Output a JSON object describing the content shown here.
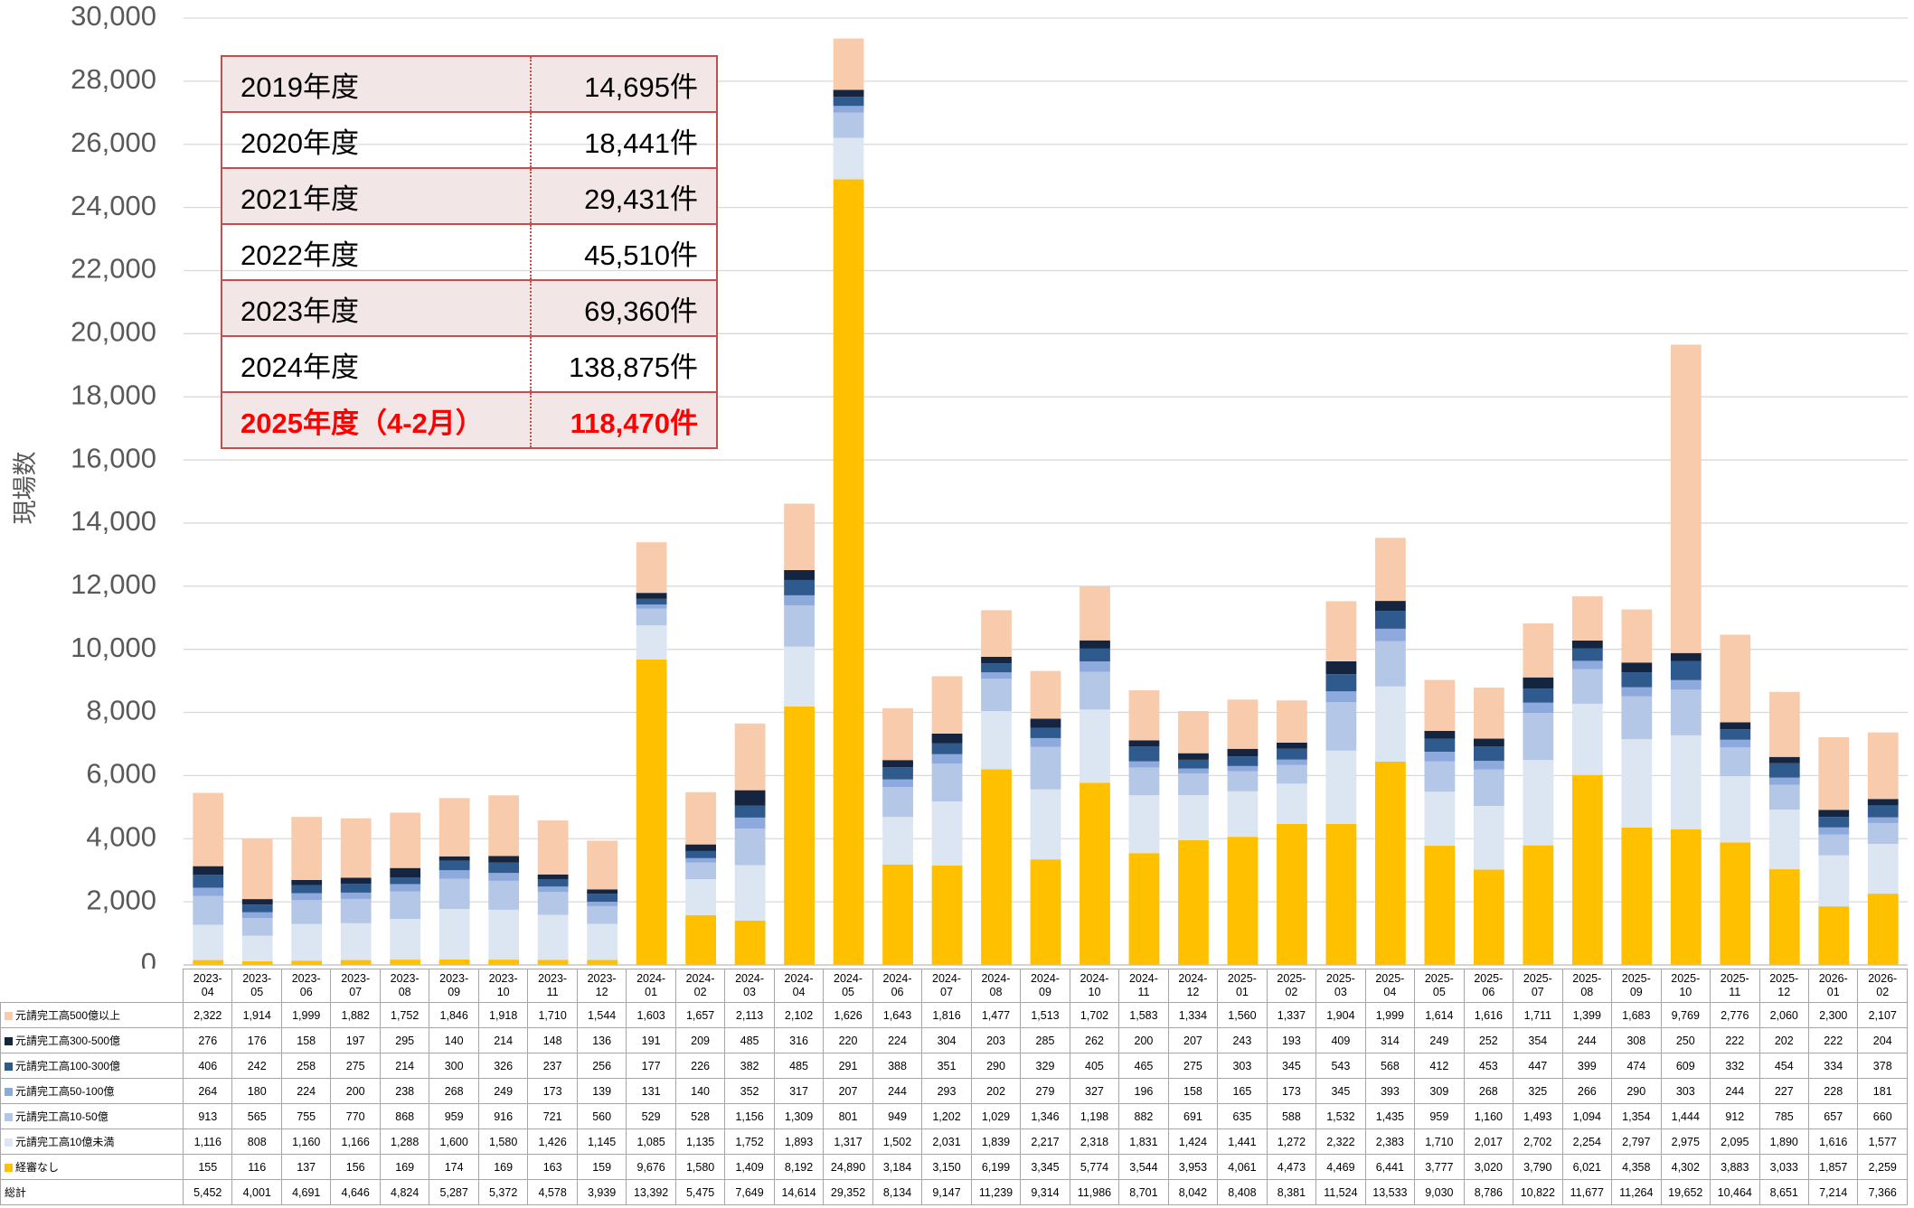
{
  "chart_data": {
    "type": "stacked_bar",
    "y_label": "現場数",
    "ylim": [
      0,
      30000
    ],
    "yticks": [
      0,
      {
        "value": 2000,
        "label": "2,000"
      },
      {
        "value": 4000,
        "label": "4,000"
      },
      {
        "value": 6000,
        "label": "6,000"
      },
      {
        "value": 8000,
        "label": "8,000"
      },
      {
        "value": 10000,
        "label": "10,000"
      },
      {
        "value": 12000,
        "label": "12,000"
      },
      {
        "value": 14000,
        "label": "14,000"
      },
      {
        "value": 16000,
        "label": "16,000"
      },
      {
        "value": 18000,
        "label": "18,000"
      },
      {
        "value": 20000,
        "label": "20,000"
      },
      {
        "value": 22000,
        "label": "22,000"
      },
      {
        "value": 24000,
        "label": "24,000"
      },
      {
        "value": 26000,
        "label": "26,000"
      },
      {
        "value": 28000,
        "label": "28,000"
      },
      {
        "value": 30000,
        "label": "30,000"
      }
    ],
    "grid": true,
    "categories": [
      "2023-04",
      "2023-05",
      "2023-06",
      "2023-07",
      "2023-08",
      "2023-09",
      "2023-10",
      "2023-11",
      "2023-12",
      "2024-01",
      "2024-02",
      "2024-03",
      "2024-04",
      "2024-05",
      "2024-06",
      "2024-07",
      "2024-08",
      "2024-09",
      "2024-10",
      "2024-11",
      "2024-12",
      "2025-01",
      "2025-02",
      "2025-03",
      "2025-04",
      "2025-05",
      "2025-06",
      "2025-07",
      "2025-08",
      "2025-09",
      "2025-10",
      "2025-11",
      "2025-12",
      "2026-01",
      "2026-02"
    ],
    "series": [
      {
        "name": "経審なし",
        "color": "#FFC000",
        "values": [
          155,
          116,
          137,
          156,
          169,
          174,
          169,
          163,
          159,
          9676,
          1580,
          1409,
          8192,
          24890,
          3184,
          3150,
          6199,
          3345,
          5774,
          3544,
          3953,
          4061,
          4473,
          4469,
          6441,
          3777,
          3020,
          3790,
          6021,
          4358,
          4302,
          3883,
          3033,
          1857,
          2259
        ],
        "value_labels": [
          "155",
          "116",
          "137",
          "156",
          "169",
          "174",
          "169",
          "163",
          "159",
          "9,676",
          "1,580",
          "1,409",
          "8,192",
          "24,890",
          "3,184",
          "3,150",
          "6,199",
          "3,345",
          "5,774",
          "3,544",
          "3,953",
          "4,061",
          "4,473",
          "4,469",
          "6,441",
          "3,777",
          "3,020",
          "3,790",
          "6,021",
          "4,358",
          "4,302",
          "3,883",
          "3,033",
          "1,857",
          "2,259"
        ]
      },
      {
        "name": "元請完工高10億未満",
        "color": "#DCE6F2",
        "values": [
          1116,
          808,
          1160,
          1166,
          1288,
          1600,
          1580,
          1426,
          1145,
          1085,
          1135,
          1752,
          1893,
          1317,
          1502,
          2031,
          1839,
          2217,
          2318,
          1831,
          1424,
          1441,
          1272,
          2322,
          2383,
          1710,
          2017,
          2702,
          2254,
          2797,
          2975,
          2095,
          1890,
          1616,
          1577
        ],
        "value_labels": [
          "1,116",
          "808",
          "1,160",
          "1,166",
          "1,288",
          "1,600",
          "1,580",
          "1,426",
          "1,145",
          "1,085",
          "1,135",
          "1,752",
          "1,893",
          "1,317",
          "1,502",
          "2,031",
          "1,839",
          "2,217",
          "2,318",
          "1,831",
          "1,424",
          "1,441",
          "1,272",
          "2,322",
          "2,383",
          "1,710",
          "2,017",
          "2,702",
          "2,254",
          "2,797",
          "2,975",
          "2,095",
          "1,890",
          "1,616",
          "1,577"
        ]
      },
      {
        "name": "元請完工高10-50億",
        "color": "#B4C7E7",
        "values": [
          913,
          565,
          755,
          770,
          868,
          959,
          916,
          721,
          560,
          529,
          528,
          1156,
          1309,
          801,
          949,
          1202,
          1029,
          1346,
          1198,
          882,
          691,
          635,
          588,
          1532,
          1435,
          959,
          1160,
          1493,
          1094,
          1354,
          1444,
          912,
          785,
          657,
          660
        ],
        "value_labels": [
          "913",
          "565",
          "755",
          "770",
          "868",
          "959",
          "916",
          "721",
          "560",
          "529",
          "528",
          "1,156",
          "1,309",
          "801",
          "949",
          "1,202",
          "1,029",
          "1,346",
          "1,198",
          "882",
          "691",
          "635",
          "588",
          "1,532",
          "1,435",
          "959",
          "1,160",
          "1,493",
          "1,094",
          "1,354",
          "1,444",
          "912",
          "785",
          "657",
          "660"
        ]
      },
      {
        "name": "元請完工高50-100億",
        "color": "#8EA9DB",
        "values": [
          264,
          180,
          224,
          200,
          238,
          268,
          249,
          173,
          139,
          131,
          140,
          352,
          317,
          207,
          244,
          293,
          202,
          279,
          327,
          196,
          158,
          165,
          173,
          345,
          393,
          309,
          268,
          325,
          266,
          290,
          303,
          244,
          227,
          228,
          181
        ]
      },
      {
        "name": "元請完工高100-300億",
        "color": "#2F5A8E",
        "values": [
          406,
          242,
          258,
          275,
          214,
          300,
          326,
          237,
          256,
          177,
          226,
          382,
          485,
          291,
          388,
          351,
          290,
          329,
          405,
          465,
          275,
          303,
          345,
          543,
          568,
          412,
          453,
          447,
          399,
          474,
          609,
          332,
          454,
          334,
          378
        ]
      },
      {
        "name": "元請完工高300-500億",
        "color": "#15253F",
        "values": [
          276,
          176,
          158,
          197,
          295,
          140,
          214,
          148,
          136,
          191,
          209,
          485,
          316,
          220,
          224,
          304,
          203,
          285,
          262,
          200,
          207,
          243,
          193,
          409,
          314,
          249,
          252,
          354,
          244,
          308,
          250,
          222,
          202,
          222,
          204
        ]
      },
      {
        "name": "元請完工高500億以上",
        "color": "#F8CBAD",
        "values": [
          2322,
          1914,
          1999,
          1882,
          1752,
          1846,
          1918,
          1710,
          1544,
          1603,
          1657,
          2113,
          2102,
          1626,
          1643,
          1816,
          1477,
          1513,
          1702,
          1583,
          1334,
          1560,
          1337,
          1904,
          1999,
          1614,
          1616,
          1711,
          1399,
          1683,
          9769,
          2776,
          2060,
          2300,
          2107
        ],
        "value_labels": [
          "2,322",
          "1,914",
          "1,999",
          "1,882",
          "1,752",
          "1,846",
          "1,918",
          "1,710",
          "1,544",
          "1,603",
          "1,657",
          "2,113",
          "2,102",
          "1,626",
          "1,643",
          "1,816",
          "1,477",
          "1,513",
          "1,702",
          "1,583",
          "1,334",
          "1,560",
          "1,337",
          "1,904",
          "1,999",
          "1,614",
          "1,616",
          "1,711",
          "1,399",
          "1,683",
          "9,769",
          "2,776",
          "2,060",
          "2,300",
          "2,107"
        ]
      }
    ],
    "total": {
      "name": "総計",
      "values": [
        5452,
        4001,
        4691,
        4646,
        4824,
        5287,
        5372,
        4578,
        3939,
        13392,
        5475,
        7649,
        14614,
        29352,
        8134,
        9147,
        11239,
        9314,
        11986,
        8701,
        8042,
        8408,
        8381,
        11524,
        13533,
        9030,
        8786,
        10822,
        11677,
        11264,
        19652,
        10464,
        8651,
        7214,
        7366
      ],
      "value_labels": [
        "5,452",
        "4,001",
        "4,691",
        "4,646",
        "4,824",
        "5,287",
        "5,372",
        "4,578",
        "3,939",
        "13,392",
        "5,475",
        "7,649",
        "14,614",
        "29,352",
        "8,134",
        "9,147",
        "11,239",
        "9,314",
        "11,986",
        "8,701",
        "8,042",
        "8,408",
        "8,381",
        "11,524",
        "13,533",
        "9,030",
        "8,786",
        "10,822",
        "11,677",
        "11,264",
        "19,652",
        "10,464",
        "8,651",
        "7,214",
        "7,366"
      ]
    },
    "summary_table": {
      "rows": [
        [
          "2019年度",
          "14,695件"
        ],
        [
          "2020年度",
          "18,441件"
        ],
        [
          "2021年度",
          "29,431件"
        ],
        [
          "2022年度",
          "45,510件"
        ],
        [
          "2023年度",
          "69,360件"
        ],
        [
          "2024年度",
          "138,875件"
        ],
        [
          "2025年度（4-2月）",
          "118,470件"
        ]
      ],
      "highlight_row": 6,
      "highlight_color": "#FF0000"
    }
  }
}
